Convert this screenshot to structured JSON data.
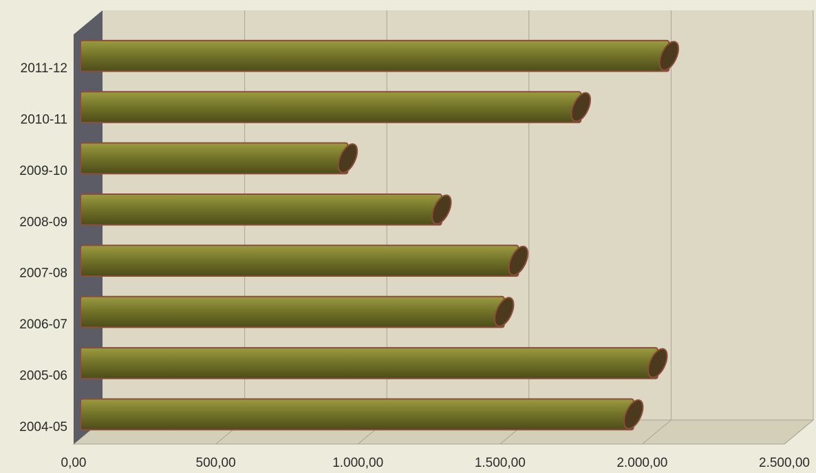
{
  "chart_data": {
    "type": "bar",
    "orientation": "horizontal",
    "style": "3d-cylinder",
    "categories": [
      "2011-12",
      "2010-11",
      "2009-10",
      "2008-09",
      "2007-08",
      "2006-07",
      "2005-06",
      "2004-05"
    ],
    "values": [
      2070,
      1760,
      940,
      1270,
      1540,
      1490,
      2030,
      1945
    ],
    "x_ticks": [
      "0,00",
      "500,00",
      "1.000,00",
      "1.500,00",
      "2.000,00",
      "2.500,00"
    ],
    "xlim": [
      0,
      2500
    ],
    "title": "",
    "xlabel": "",
    "ylabel": "",
    "grid": true,
    "legend": "none",
    "colors": {
      "background": "#ecebdc",
      "plot_back": "#ddd8c4",
      "plot_floor": "#d4cfb9",
      "left_wall": "#5b5c66",
      "bar_light": "#9b9b40",
      "bar_mid": "#717228",
      "bar_dark": "#4c4c1a",
      "bar_edge": "#8a4e3a",
      "bar_cap": "#4b3a1e",
      "grid": "#a9a493"
    }
  }
}
